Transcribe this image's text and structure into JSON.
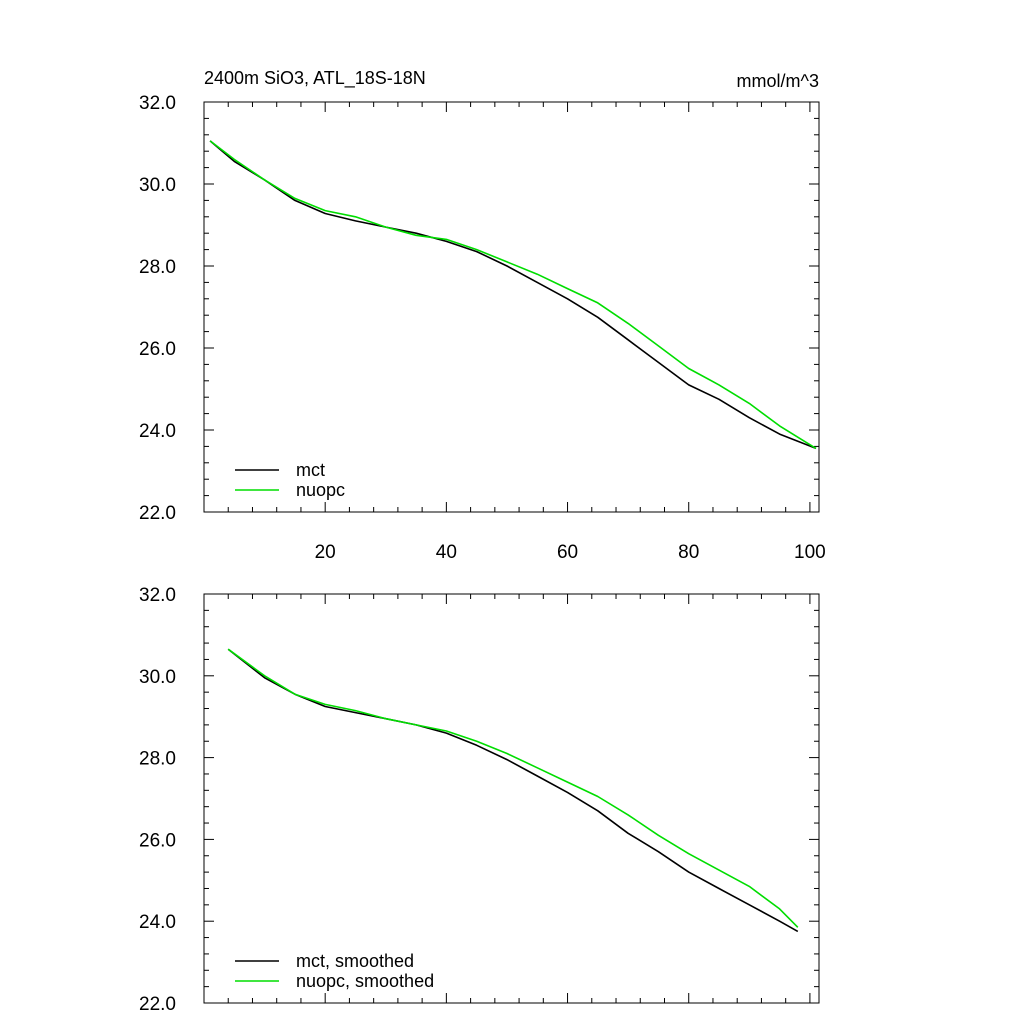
{
  "figure": {
    "title": "2400m SiO3, ATL_18S-18N",
    "units": "mmol/m^3"
  },
  "chart_data": [
    {
      "type": "line",
      "title": "2400m SiO3, ATL_18S-18N",
      "units": "mmol/m^3",
      "xlabel": "",
      "ylabel": "",
      "xlim": [
        0,
        101.5
      ],
      "ylim": [
        22.0,
        32.0
      ],
      "xticks": [
        20,
        40,
        60,
        80,
        100
      ],
      "xtick_labels": [
        "20",
        "40",
        "60",
        "80",
        "100"
      ],
      "xtick_labels_visible": true,
      "yticks": [
        22.0,
        24.0,
        26.0,
        28.0,
        30.0,
        32.0
      ],
      "ytick_labels": [
        "22.0",
        "24.0",
        "26.0",
        "28.0",
        "30.0",
        "32.0"
      ],
      "legend_position": "bottom-left",
      "series": [
        {
          "name": "mct",
          "color": "#000000",
          "x": [
            1,
            5,
            10,
            15,
            20,
            25,
            30,
            35,
            40,
            45,
            50,
            55,
            60,
            65,
            70,
            75,
            80,
            85,
            90,
            95,
            101
          ],
          "y": [
            31.05,
            30.55,
            30.1,
            29.6,
            29.28,
            29.1,
            28.95,
            28.8,
            28.6,
            28.35,
            28.0,
            27.6,
            27.2,
            26.75,
            26.2,
            25.65,
            25.1,
            24.75,
            24.3,
            23.9,
            23.55
          ]
        },
        {
          "name": "nuopc",
          "color": "#00dd00",
          "x": [
            1,
            5,
            10,
            15,
            20,
            25,
            30,
            35,
            40,
            45,
            50,
            55,
            60,
            65,
            70,
            75,
            80,
            85,
            90,
            95,
            101
          ],
          "y": [
            31.05,
            30.6,
            30.1,
            29.65,
            29.35,
            29.2,
            28.95,
            28.75,
            28.65,
            28.4,
            28.1,
            27.8,
            27.45,
            27.1,
            26.6,
            26.05,
            25.5,
            25.1,
            24.65,
            24.1,
            23.55
          ]
        }
      ]
    },
    {
      "type": "line",
      "title": "",
      "xlabel": "",
      "ylabel": "",
      "xlim": [
        0,
        101.5
      ],
      "ylim": [
        22.0,
        32.0
      ],
      "xticks": [
        20,
        40,
        60,
        80,
        100
      ],
      "xtick_labels_visible": false,
      "yticks": [
        22.0,
        24.0,
        26.0,
        28.0,
        30.0,
        32.0
      ],
      "ytick_labels": [
        "22.0",
        "24.0",
        "26.0",
        "28.0",
        "30.0",
        "32.0"
      ],
      "legend_position": "bottom-left",
      "series": [
        {
          "name": "mct, smoothed",
          "color": "#000000",
          "x": [
            4,
            10,
            15,
            20,
            25,
            30,
            35,
            40,
            45,
            50,
            55,
            60,
            65,
            70,
            75,
            80,
            85,
            90,
            95,
            98
          ],
          "y": [
            30.65,
            29.95,
            29.55,
            29.25,
            29.1,
            28.95,
            28.8,
            28.6,
            28.3,
            27.95,
            27.55,
            27.15,
            26.7,
            26.15,
            25.7,
            25.2,
            24.8,
            24.4,
            24.0,
            23.75
          ]
        },
        {
          "name": "nuopc, smoothed",
          "color": "#00dd00",
          "x": [
            4,
            10,
            15,
            20,
            25,
            30,
            35,
            40,
            45,
            50,
            55,
            60,
            65,
            70,
            75,
            80,
            85,
            90,
            95,
            98
          ],
          "y": [
            30.65,
            30.0,
            29.55,
            29.3,
            29.15,
            28.95,
            28.8,
            28.65,
            28.4,
            28.1,
            27.75,
            27.4,
            27.05,
            26.6,
            26.1,
            25.65,
            25.25,
            24.85,
            24.3,
            23.85
          ]
        }
      ]
    }
  ]
}
